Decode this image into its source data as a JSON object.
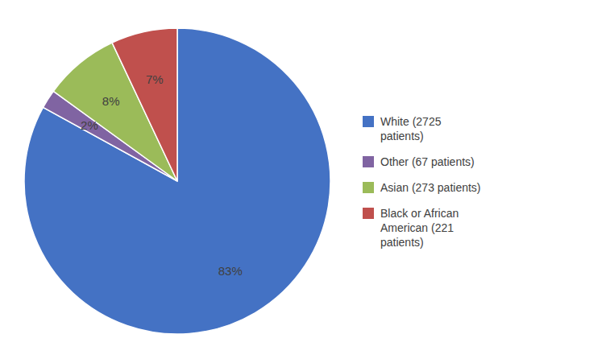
{
  "chart_data": {
    "type": "pie",
    "categories": [
      "White (2725\npatients)",
      "Other (67 patients)",
      "Asian (273 patients)",
      "Black or African\nAmerican (221\npatients)"
    ],
    "values": [
      83,
      2,
      8,
      7
    ],
    "value_labels": [
      "83%",
      "2%",
      "8%",
      "7%"
    ],
    "colors": [
      "#4472C4",
      "#8064A2",
      "#9BBB59",
      "#C0504D"
    ],
    "data_labels": true,
    "legend": "right"
  }
}
